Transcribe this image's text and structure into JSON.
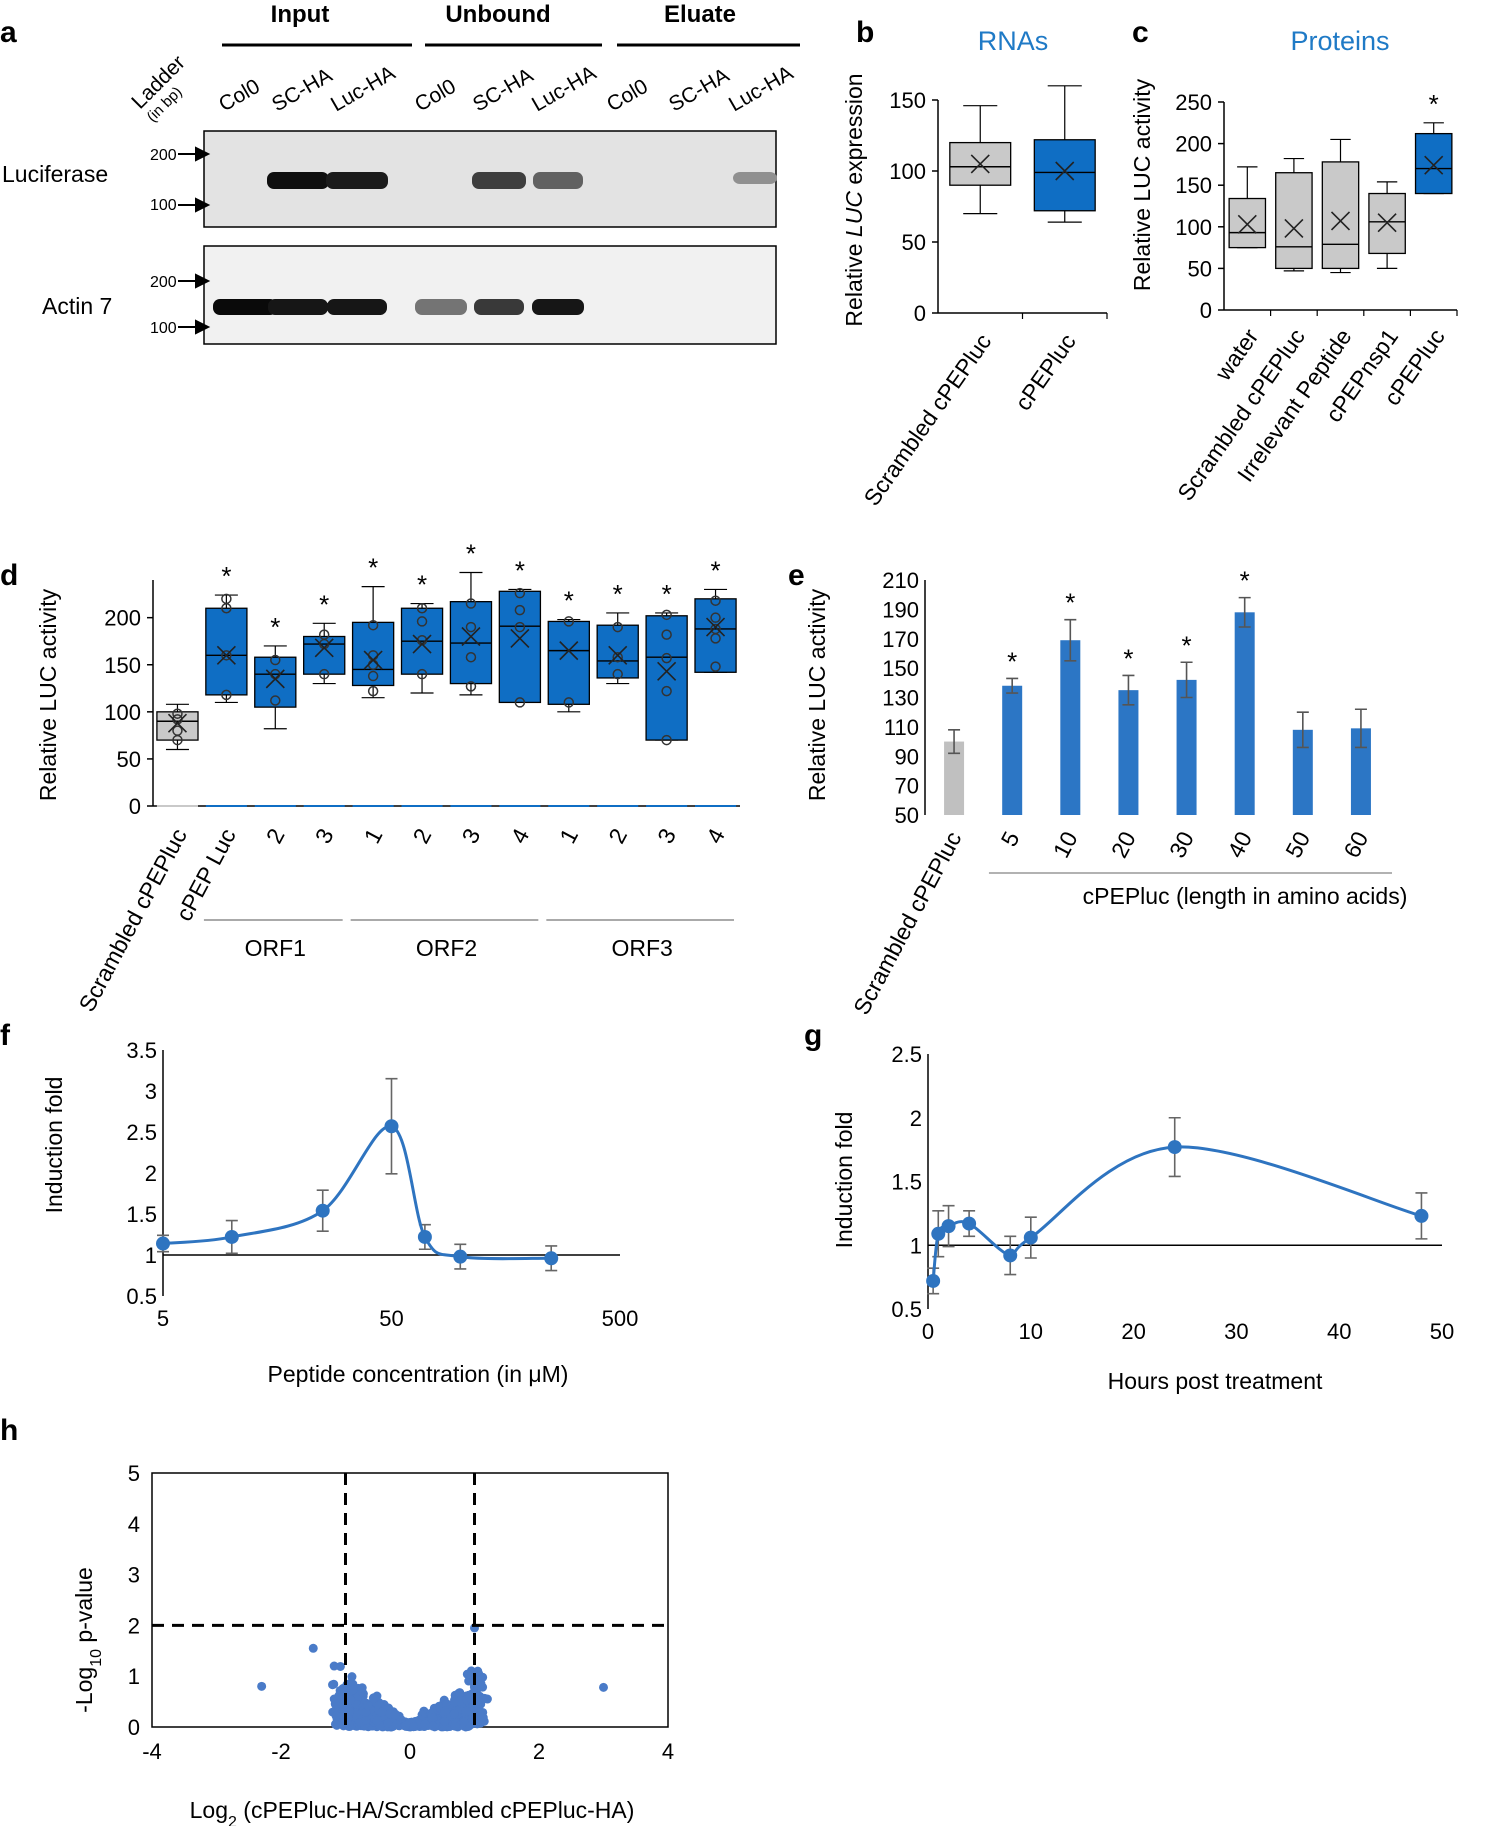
{
  "figure": {
    "panel_labels": [
      "a",
      "b",
      "c",
      "d",
      "e",
      "f",
      "g",
      "h"
    ]
  },
  "gel": {
    "sections": [
      "Input",
      "Unbound",
      "Eluate"
    ],
    "lanes": [
      "Col0",
      "SC-HA",
      "Luc-HA",
      "Col0",
      "SC-HA",
      "Luc-HA",
      "Col0",
      "SC-HA",
      "Luc-HA"
    ],
    "ladder_label": "Ladder",
    "ladder_unit": "(in bp)",
    "rows": [
      "Luciferase",
      "Actin 7"
    ],
    "markers": [
      "200",
      "100"
    ],
    "luciferase_band_intensity": [
      0,
      1.0,
      0.95,
      0,
      0.8,
      0.65,
      0,
      0,
      0.45
    ],
    "actin_band_intensity": [
      1.0,
      0.95,
      0.95,
      0.55,
      0.8,
      0.95,
      0,
      0,
      0
    ]
  },
  "chart_data": [
    {
      "panel": "b",
      "type": "box",
      "title": "RNAs",
      "ylabel_parts": [
        "Relative ",
        "LUC",
        " expression"
      ],
      "ylim": [
        0,
        150
      ],
      "yticks": [
        "0",
        "50",
        "100",
        "150"
      ],
      "categories": [
        "Scrambled cPEPluc",
        "cPEPluc"
      ],
      "boxes": [
        {
          "min": 70,
          "q1": 90,
          "median": 103,
          "q3": 120,
          "max": 146,
          "mean": 105,
          "color": "#c9c9c9"
        },
        {
          "min": 64,
          "q1": 72,
          "median": 99,
          "q3": 122,
          "max": 160,
          "mean": 100,
          "color": "#0f6ec4"
        }
      ]
    },
    {
      "panel": "c",
      "type": "box",
      "title": "Proteins",
      "ylabel": "Relative LUC  activity",
      "ylim": [
        0,
        250
      ],
      "yticks": [
        "0",
        "50",
        "100",
        "150",
        "200",
        "250"
      ],
      "categories": [
        "water",
        "Scrambled cPEPluc",
        "Irrelevant Peptide",
        "cPEPnsp1",
        "cPEPluc"
      ],
      "boxes": [
        {
          "min": 75,
          "q1": 75,
          "median": 93,
          "q3": 134,
          "max": 172,
          "mean": 103,
          "color": "#c9c9c9"
        },
        {
          "min": 47,
          "q1": 50,
          "median": 76,
          "q3": 165,
          "max": 182,
          "mean": 98,
          "color": "#c9c9c9"
        },
        {
          "min": 45,
          "q1": 50,
          "median": 79,
          "q3": 178,
          "max": 205,
          "mean": 107,
          "color": "#c9c9c9"
        },
        {
          "min": 50,
          "q1": 68,
          "median": 106,
          "q3": 140,
          "max": 154,
          "mean": 105,
          "color": "#c9c9c9"
        },
        {
          "min": 140,
          "q1": 140,
          "median": 170,
          "q3": 212,
          "max": 225,
          "mean": 174,
          "color": "#0f6ec4"
        }
      ],
      "significance": [
        "",
        "",
        "",
        "",
        "*"
      ]
    },
    {
      "panel": "d",
      "type": "box",
      "ylabel": "Relative LUC  activity",
      "ylim": [
        0,
        240
      ],
      "yticks": [
        "0",
        "50",
        "100",
        "150",
        "200"
      ],
      "categories": [
        "Scrambled cPEPluc",
        "cPEP Luc",
        "2",
        "3",
        "1",
        "2",
        "3",
        "4",
        "1",
        "2",
        "3",
        "4"
      ],
      "groups": [
        {
          "label": "ORF1",
          "from": 1,
          "to": 3
        },
        {
          "label": "ORF2",
          "from": 4,
          "to": 7
        },
        {
          "label": "ORF3",
          "from": 8,
          "to": 11
        }
      ],
      "boxes": [
        {
          "min": 60,
          "q1": 70,
          "median": 90,
          "q3": 100,
          "max": 108,
          "mean": 88,
          "points": [
            70,
            80,
            92,
            98
          ],
          "color": "#c9c9c9"
        },
        {
          "min": 110,
          "q1": 118,
          "median": 160,
          "q3": 210,
          "max": 224,
          "mean": 160,
          "points": [
            118,
            160,
            210,
            220
          ],
          "color": "#0f6ec4"
        },
        {
          "min": 82,
          "q1": 105,
          "median": 140,
          "q3": 158,
          "max": 170,
          "mean": 135,
          "points": [
            112,
            140,
            155
          ],
          "color": "#0f6ec4"
        },
        {
          "min": 130,
          "q1": 140,
          "median": 172,
          "q3": 180,
          "max": 194,
          "mean": 168,
          "points": [
            140,
            172,
            182
          ],
          "color": "#0f6ec4"
        },
        {
          "min": 115,
          "q1": 128,
          "median": 145,
          "q3": 195,
          "max": 233,
          "mean": 155,
          "points": [
            122,
            138,
            150,
            160,
            192
          ],
          "color": "#0f6ec4"
        },
        {
          "min": 120,
          "q1": 140,
          "median": 175,
          "q3": 210,
          "max": 215,
          "mean": 172,
          "points": [
            140,
            176,
            196,
            210
          ],
          "color": "#0f6ec4"
        },
        {
          "min": 118,
          "q1": 130,
          "median": 173,
          "q3": 217,
          "max": 248,
          "mean": 180,
          "points": [
            127,
            158,
            190,
            215
          ],
          "color": "#0f6ec4"
        },
        {
          "min": 110,
          "q1": 110,
          "median": 191,
          "q3": 228,
          "max": 230,
          "mean": 178,
          "points": [
            110,
            190,
            208,
            226
          ],
          "color": "#0f6ec4"
        },
        {
          "min": 100,
          "q1": 108,
          "median": 165,
          "q3": 196,
          "max": 198,
          "mean": 165,
          "points": [
            110,
            196
          ],
          "color": "#0f6ec4"
        },
        {
          "min": 130,
          "q1": 136,
          "median": 154,
          "q3": 192,
          "max": 205,
          "mean": 160,
          "points": [
            140,
            158,
            190
          ],
          "color": "#0f6ec4"
        },
        {
          "min": 70,
          "q1": 70,
          "median": 158,
          "q3": 202,
          "max": 205,
          "mean": 143,
          "points": [
            70,
            122,
            157,
            182,
            203
          ],
          "color": "#0f6ec4"
        },
        {
          "min": 142,
          "q1": 142,
          "median": 188,
          "q3": 220,
          "max": 230,
          "mean": 190,
          "points": [
            148,
            178,
            188,
            200,
            218
          ],
          "color": "#0f6ec4"
        }
      ],
      "significance": [
        "",
        "*",
        "*",
        "*",
        "*",
        "*",
        "*",
        "*",
        "*",
        "*",
        "*",
        "*"
      ]
    },
    {
      "panel": "e",
      "type": "bar",
      "ylabel": "Relative LUC  activity",
      "ylim": [
        50,
        210
      ],
      "yticks": [
        "50",
        "70",
        "90",
        "110",
        "130",
        "150",
        "170",
        "190",
        "210"
      ],
      "categories": [
        "Scrambled cPEPluc",
        "5",
        "10",
        "20",
        "30",
        "40",
        "50",
        "60"
      ],
      "values": [
        100,
        138,
        169,
        135,
        142,
        188,
        108,
        109
      ],
      "errors": [
        8,
        5,
        14,
        10,
        12,
        10,
        12,
        13
      ],
      "colors": [
        "#c0c0c0",
        "#2c76c5",
        "#2c76c5",
        "#2c76c5",
        "#2c76c5",
        "#2c76c5",
        "#2c76c5",
        "#2c76c5"
      ],
      "significance": [
        "",
        "*",
        "*",
        "*",
        "*",
        "*",
        "",
        ""
      ],
      "xlabel": "cPEPluc (length in amino acids)"
    },
    {
      "panel": "f",
      "type": "line",
      "xscale": "log",
      "xlabel": "Peptide concentration (in μM)",
      "ylabel": "Induction fold",
      "xlim": [
        5,
        500
      ],
      "xticks": [
        "5",
        "50",
        "500"
      ],
      "ylim": [
        0.5,
        3.5
      ],
      "yticks": [
        "0.5",
        "1",
        "1.5",
        "2",
        "2.5",
        "3",
        "3.5"
      ],
      "x": [
        5,
        10,
        25,
        50,
        70,
        100,
        250
      ],
      "y": [
        1.14,
        1.22,
        1.54,
        2.57,
        1.22,
        0.98,
        0.96
      ],
      "errors": [
        0.1,
        0.2,
        0.25,
        0.58,
        0.15,
        0.15,
        0.15
      ],
      "color": "#2e74c0"
    },
    {
      "panel": "g",
      "type": "line",
      "xlabel": "Hours post treatment",
      "ylabel": "Induction fold",
      "xlim": [
        0,
        50
      ],
      "xticks": [
        "0",
        "10",
        "20",
        "30",
        "40",
        "50"
      ],
      "ylim": [
        0.5,
        2.5
      ],
      "yticks": [
        "0.5",
        "1",
        "1.5",
        "2",
        "2.5"
      ],
      "x": [
        0.5,
        1,
        2,
        4,
        8,
        10,
        24,
        48
      ],
      "y": [
        0.72,
        1.09,
        1.15,
        1.17,
        0.92,
        1.06,
        1.77,
        1.23
      ],
      "errors": [
        0.1,
        0.18,
        0.16,
        0.1,
        0.15,
        0.16,
        0.23,
        0.18
      ],
      "color": "#2e74c0"
    },
    {
      "panel": "h",
      "type": "scatter",
      "xlabel_parts": [
        "Log",
        "2",
        " (cPEPluc-HA/Scrambled cPEPluc-HA)"
      ],
      "ylabel_parts": [
        "-Log",
        "10",
        " p-value"
      ],
      "xlim": [
        -4,
        4
      ],
      "xticks": [
        "-4",
        "-2",
        "0",
        "2",
        "4"
      ],
      "ylim": [
        0,
        5
      ],
      "yticks": [
        "0",
        "1",
        "2",
        "3",
        "4",
        "5"
      ],
      "thresholds": {
        "x": [
          -1,
          1
        ],
        "y": 2
      },
      "color": "#4a7bc8",
      "outliers": [
        [
          -2.3,
          0.8
        ],
        [
          -1.5,
          1.55
        ],
        [
          3.0,
          0.78
        ],
        [
          1.0,
          1.95
        ],
        [
          -1.1,
          0.62
        ],
        [
          1.2,
          0.55
        ],
        [
          -1.05,
          0.7
        ],
        [
          1.05,
          1.1
        ]
      ]
    }
  ]
}
